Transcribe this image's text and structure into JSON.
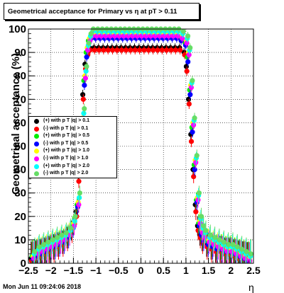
{
  "header": {
    "title": "Geometrical acceptance for Primary vs   η at pT > 0.11"
  },
  "footer": {
    "datestamp": "Mon Jun 11 09:24:06 2018"
  },
  "chart_data": {
    "type": "scatter",
    "title": "Geometrical acceptance for Primary vs   η at pT > 0.11",
    "xlabel": "η",
    "ylabel": "Geometrical acceptance (%)",
    "xlim": [
      -2.5,
      2.5
    ],
    "ylim": [
      0,
      100
    ],
    "x_ticks": [
      "−2.5",
      "−2",
      "−1.5",
      "−1",
      "−0.5",
      "0",
      "0.5",
      "1",
      "1.5",
      "2",
      "2.5"
    ],
    "y_ticks": [
      "0",
      "10",
      "20",
      "30",
      "40",
      "50",
      "60",
      "70",
      "80",
      "90",
      "100"
    ],
    "grid": true,
    "legend_position": "left-middle",
    "x": [
      -2.4,
      -2.3,
      -2.2,
      -2.1,
      -2.0,
      -1.9,
      -1.8,
      -1.7,
      -1.6,
      -1.5,
      -1.4,
      -1.35,
      -1.3,
      -1.25,
      -1.2,
      -1.15,
      -1.1,
      -1.0,
      -0.9,
      -0.8,
      -0.7,
      -0.6,
      -0.5,
      -0.4,
      -0.3,
      -0.2,
      -0.1,
      0.0,
      0.1,
      0.2,
      0.3,
      0.4,
      0.5,
      0.6,
      0.7,
      0.8,
      0.9,
      1.0,
      1.05,
      1.1,
      1.15,
      1.2,
      1.25,
      1.3,
      1.35,
      1.4,
      1.5,
      1.6,
      1.7,
      1.8,
      1.9,
      2.0,
      2.1,
      2.2,
      2.3,
      2.4
    ],
    "series": [
      {
        "name": "(+) with p T |q| > 0.1",
        "color": "#000000",
        "values": [
          2,
          3,
          4,
          5,
          6,
          7,
          8,
          9,
          11,
          14,
          22,
          38,
          55,
          72,
          85,
          90,
          92,
          92,
          92,
          92,
          92,
          92,
          92,
          92,
          92,
          92,
          92,
          92,
          92,
          92,
          92,
          92,
          92,
          92,
          92,
          92,
          92,
          90,
          84,
          70,
          55,
          40,
          25,
          16,
          12,
          10,
          8,
          7,
          6,
          6,
          5,
          5,
          4,
          3,
          2,
          1
        ]
      },
      {
        "name": "(-) with p T |q| > 0.1",
        "color": "#ff0000",
        "values": [
          1,
          2,
          3,
          4,
          5,
          6,
          7,
          8,
          10,
          13,
          20,
          35,
          52,
          70,
          83,
          89,
          91,
          91,
          91,
          91,
          91,
          91,
          91,
          91,
          91,
          91,
          91,
          91,
          91,
          91,
          91,
          91,
          91,
          91,
          91,
          91,
          91,
          89,
          82,
          68,
          52,
          37,
          22,
          14,
          11,
          9,
          7,
          6,
          5,
          5,
          4,
          4,
          3,
          2,
          2,
          1
        ]
      },
      {
        "name": "(+) with p T |q| > 0.5",
        "color": "#00ee00",
        "values": [
          3,
          4,
          5,
          6,
          7,
          8,
          9,
          10,
          12,
          16,
          25,
          42,
          60,
          78,
          90,
          95,
          97,
          97,
          97,
          97,
          97,
          97,
          97,
          97,
          97,
          97,
          97,
          97,
          97,
          97,
          97,
          97,
          97,
          97,
          97,
          97,
          96,
          94,
          88,
          74,
          58,
          42,
          27,
          17,
          13,
          11,
          9,
          8,
          7,
          7,
          6,
          6,
          5,
          4,
          3,
          2
        ]
      },
      {
        "name": "(-) with p T |q| > 0.5",
        "color": "#0000ff",
        "values": [
          2,
          3,
          4,
          5,
          6,
          7,
          8,
          9,
          11,
          15,
          24,
          40,
          58,
          76,
          88,
          94,
          96,
          96,
          96,
          96,
          96,
          96,
          96,
          96,
          96,
          96,
          96,
          96,
          96,
          96,
          96,
          96,
          96,
          96,
          96,
          96,
          95,
          93,
          86,
          72,
          56,
          40,
          26,
          16,
          12,
          10,
          8,
          7,
          6,
          6,
          5,
          5,
          4,
          3,
          2,
          1
        ]
      },
      {
        "name": "(+) with p T |q| > 1.0",
        "color": "#ffff00",
        "values": [
          3,
          5,
          6,
          7,
          8,
          9,
          10,
          11,
          13,
          17,
          26,
          44,
          62,
          80,
          92,
          96,
          98,
          98,
          98,
          98,
          98,
          98,
          98,
          98,
          98,
          98,
          98,
          98,
          98,
          98,
          98,
          98,
          98,
          98,
          98,
          98,
          97,
          95,
          90,
          76,
          60,
          44,
          28,
          18,
          14,
          12,
          10,
          9,
          8,
          7,
          6,
          6,
          5,
          4,
          3,
          2
        ]
      },
      {
        "name": "(-) with p T |q| > 1.0",
        "color": "#ff00ff",
        "values": [
          2,
          4,
          5,
          6,
          7,
          8,
          9,
          10,
          12,
          16,
          25,
          43,
          61,
          79,
          91,
          95,
          97,
          97,
          97,
          97,
          97,
          97,
          97,
          97,
          97,
          97,
          97,
          97,
          97,
          97,
          97,
          97,
          97,
          97,
          97,
          97,
          96,
          94,
          89,
          75,
          59,
          43,
          27,
          17,
          13,
          11,
          9,
          8,
          7,
          6,
          5,
          5,
          4,
          3,
          2,
          1
        ]
      },
      {
        "name": "(+) with p T |q| > 2.0",
        "color": "#00ffff",
        "values": [
          4,
          6,
          7,
          8,
          9,
          10,
          11,
          12,
          14,
          18,
          28,
          46,
          64,
          82,
          93,
          97,
          99,
          99,
          99,
          99,
          99,
          99,
          99,
          99,
          99,
          99,
          99,
          99,
          99,
          99,
          99,
          99,
          99,
          99,
          99,
          99,
          98,
          96,
          91,
          77,
          61,
          45,
          29,
          19,
          15,
          13,
          11,
          10,
          9,
          8,
          7,
          7,
          6,
          5,
          4,
          3
        ]
      },
      {
        "name": "(-) with p T |q| > 2.0",
        "color": "#66dd66",
        "values": [
          5,
          7,
          8,
          9,
          10,
          11,
          12,
          13,
          15,
          20,
          30,
          48,
          66,
          84,
          94,
          98,
          100,
          100,
          100,
          100,
          100,
          100,
          100,
          100,
          100,
          100,
          100,
          100,
          100,
          100,
          100,
          100,
          100,
          100,
          100,
          100,
          99,
          97,
          92,
          78,
          62,
          46,
          30,
          20,
          16,
          14,
          12,
          11,
          10,
          9,
          8,
          8,
          7,
          6,
          5,
          4
        ]
      }
    ]
  }
}
